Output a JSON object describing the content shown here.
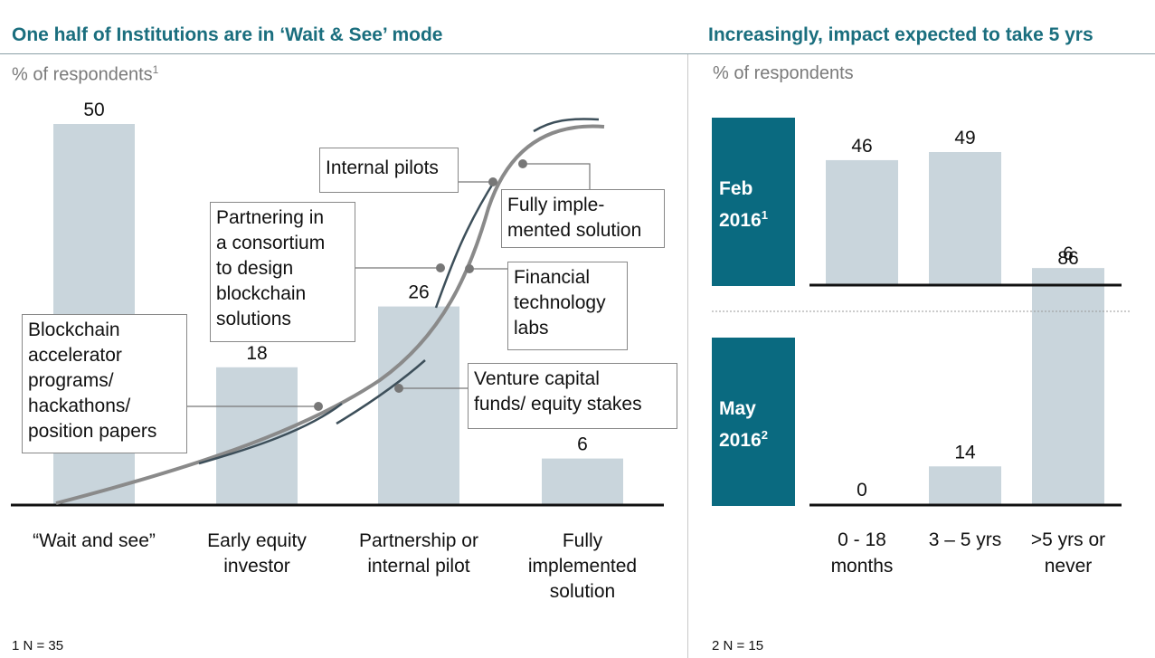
{
  "left": {
    "title": "One half of Institutions are in ‘Wait & See’ mode",
    "subtitle": "% of respondents",
    "subtitle_sup": "1",
    "footnote": "1 N = 35"
  },
  "right": {
    "title": "Increasingly, impact expected to take 5 yrs",
    "subtitle": "% of respondents",
    "footnote": "2 N = 15",
    "panels": [
      {
        "label_line1": "Feb",
        "label_line2": "2016",
        "label_sup": "1"
      },
      {
        "label_line1": "May",
        "label_line2": "2016",
        "label_sup": "2"
      }
    ]
  },
  "callouts": {
    "internal_pilots": "Internal pilots",
    "fully_impl": [
      "Fully imple-",
      "mented solution"
    ],
    "partnering": [
      "Partnering in",
      "a consortium",
      "to design",
      "blockchain",
      "solutions"
    ],
    "fintech": [
      "Financial",
      "technology",
      "labs"
    ],
    "accelerator": [
      "Blockchain",
      "accelerator",
      "programs/",
      "hackathons/",
      "position papers"
    ],
    "venture": [
      "Venture capital",
      "funds/ equity stakes"
    ]
  },
  "colors": {
    "bar": "#c9d5dc",
    "teal": "#0a6a80",
    "title": "#1a6e7e",
    "curve": "#8a8a8a"
  },
  "chart_data": [
    {
      "type": "bar",
      "title": "One half of Institutions are in ‘Wait & See’ mode",
      "ylabel": "% of respondents",
      "categories": [
        "“Wait and see”",
        "Early equity investor",
        "Partnership or internal pilot",
        "Fully implemented solution"
      ],
      "category_lines": [
        [
          "“Wait and see”"
        ],
        [
          "Early equity",
          "investor"
        ],
        [
          "Partnership or",
          "internal pilot"
        ],
        [
          "Fully",
          "implemented",
          "solution"
        ]
      ],
      "values": [
        50,
        18,
        26,
        6
      ],
      "ylim": [
        0,
        50
      ]
    },
    {
      "type": "bar",
      "title": "Increasingly, impact expected to take 5 yrs",
      "ylabel": "% of respondents",
      "categories": [
        "0 - 18 months",
        "3 – 5 yrs",
        ">5 yrs or never"
      ],
      "category_lines": [
        [
          "0 - 18",
          "months"
        ],
        [
          "3 – 5 yrs"
        ],
        [
          ">5 yrs or",
          "never"
        ]
      ],
      "series": [
        {
          "name": "Feb 2016",
          "values": [
            46,
            49,
            6
          ]
        },
        {
          "name": "May 2016",
          "values": [
            0,
            14,
            86
          ]
        }
      ]
    }
  ]
}
